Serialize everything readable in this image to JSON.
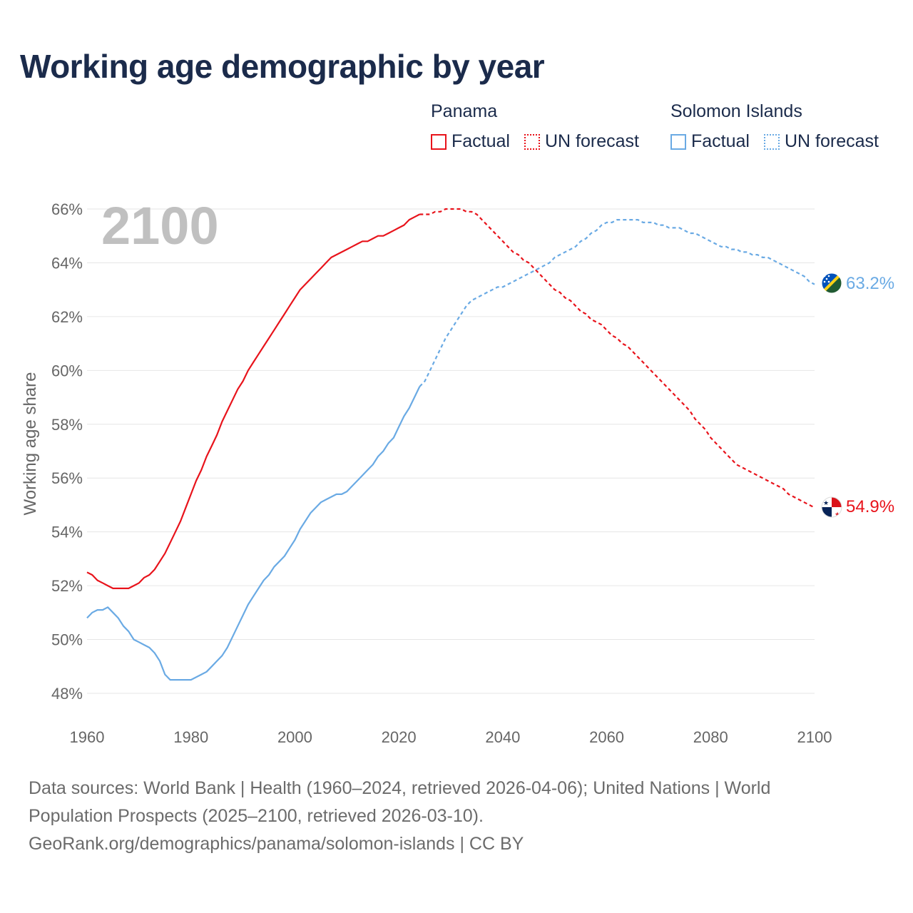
{
  "title": "Working age demographic by year",
  "legend": {
    "groups": [
      {
        "name": "Panama",
        "items": [
          {
            "label": "Factual",
            "style": "solid",
            "color": "#e8131b"
          },
          {
            "label": "UN forecast",
            "style": "dotted",
            "color": "#e8131b"
          }
        ]
      },
      {
        "name": "Solomon Islands",
        "items": [
          {
            "label": "Factual",
            "style": "solid",
            "color": "#6aaae4"
          },
          {
            "label": "UN forecast",
            "style": "dotted",
            "color": "#6aaae4"
          }
        ]
      }
    ]
  },
  "chart_data": {
    "type": "line",
    "title": "Working age demographic by year",
    "xlabel": "",
    "ylabel": "Working age share",
    "year_watermark": "2100",
    "xlim": [
      1960,
      2100
    ],
    "ylim": [
      47.5,
      66.5
    ],
    "x_ticks": [
      1960,
      1980,
      2000,
      2020,
      2040,
      2060,
      2080,
      2100
    ],
    "y_ticks": [
      48,
      50,
      52,
      54,
      56,
      58,
      60,
      62,
      64,
      66
    ],
    "y_tick_labels": [
      "48%",
      "50%",
      "52%",
      "54%",
      "56%",
      "58%",
      "60%",
      "62%",
      "64%",
      "66%"
    ],
    "grid": "horizontal",
    "series": [
      {
        "name": "Panama",
        "color": "#e8131b",
        "end_label": "54.9%",
        "factual": [
          [
            1960,
            52.5
          ],
          [
            1961,
            52.4
          ],
          [
            1962,
            52.2
          ],
          [
            1963,
            52.1
          ],
          [
            1964,
            52.0
          ],
          [
            1965,
            51.9
          ],
          [
            1966,
            51.9
          ],
          [
            1967,
            51.9
          ],
          [
            1968,
            51.9
          ],
          [
            1969,
            52.0
          ],
          [
            1970,
            52.1
          ],
          [
            1971,
            52.3
          ],
          [
            1972,
            52.4
          ],
          [
            1973,
            52.6
          ],
          [
            1974,
            52.9
          ],
          [
            1975,
            53.2
          ],
          [
            1976,
            53.6
          ],
          [
            1977,
            54.0
          ],
          [
            1978,
            54.4
          ],
          [
            1979,
            54.9
          ],
          [
            1980,
            55.4
          ],
          [
            1981,
            55.9
          ],
          [
            1982,
            56.3
          ],
          [
            1983,
            56.8
          ],
          [
            1984,
            57.2
          ],
          [
            1985,
            57.6
          ],
          [
            1986,
            58.1
          ],
          [
            1987,
            58.5
          ],
          [
            1988,
            58.9
          ],
          [
            1989,
            59.3
          ],
          [
            1990,
            59.6
          ],
          [
            1991,
            60.0
          ],
          [
            1992,
            60.3
          ],
          [
            1993,
            60.6
          ],
          [
            1994,
            60.9
          ],
          [
            1995,
            61.2
          ],
          [
            1996,
            61.5
          ],
          [
            1997,
            61.8
          ],
          [
            1998,
            62.1
          ],
          [
            1999,
            62.4
          ],
          [
            2000,
            62.7
          ],
          [
            2001,
            63.0
          ],
          [
            2002,
            63.2
          ],
          [
            2003,
            63.4
          ],
          [
            2004,
            63.6
          ],
          [
            2005,
            63.8
          ],
          [
            2006,
            64.0
          ],
          [
            2007,
            64.2
          ],
          [
            2008,
            64.3
          ],
          [
            2009,
            64.4
          ],
          [
            2010,
            64.5
          ],
          [
            2011,
            64.6
          ],
          [
            2012,
            64.7
          ],
          [
            2013,
            64.8
          ],
          [
            2014,
            64.8
          ],
          [
            2015,
            64.9
          ],
          [
            2016,
            65.0
          ],
          [
            2017,
            65.0
          ],
          [
            2018,
            65.1
          ],
          [
            2019,
            65.2
          ],
          [
            2020,
            65.3
          ],
          [
            2021,
            65.4
          ],
          [
            2022,
            65.6
          ],
          [
            2023,
            65.7
          ],
          [
            2024,
            65.8
          ]
        ],
        "forecast": [
          [
            2024,
            65.8
          ],
          [
            2025,
            65.8
          ],
          [
            2026,
            65.8
          ],
          [
            2027,
            65.9
          ],
          [
            2028,
            65.9
          ],
          [
            2029,
            66.0
          ],
          [
            2030,
            66.0
          ],
          [
            2031,
            66.0
          ],
          [
            2032,
            66.0
          ],
          [
            2033,
            65.9
          ],
          [
            2034,
            65.9
          ],
          [
            2035,
            65.8
          ],
          [
            2036,
            65.6
          ],
          [
            2037,
            65.4
          ],
          [
            2038,
            65.2
          ],
          [
            2039,
            65.0
          ],
          [
            2040,
            64.8
          ],
          [
            2041,
            64.6
          ],
          [
            2042,
            64.4
          ],
          [
            2043,
            64.3
          ],
          [
            2044,
            64.1
          ],
          [
            2045,
            64.0
          ],
          [
            2046,
            63.8
          ],
          [
            2047,
            63.6
          ],
          [
            2048,
            63.4
          ],
          [
            2049,
            63.2
          ],
          [
            2050,
            63.0
          ],
          [
            2051,
            62.9
          ],
          [
            2052,
            62.7
          ],
          [
            2053,
            62.6
          ],
          [
            2054,
            62.4
          ],
          [
            2055,
            62.2
          ],
          [
            2056,
            62.1
          ],
          [
            2057,
            61.9
          ],
          [
            2058,
            61.8
          ],
          [
            2059,
            61.7
          ],
          [
            2060,
            61.5
          ],
          [
            2061,
            61.3
          ],
          [
            2062,
            61.2
          ],
          [
            2063,
            61.0
          ],
          [
            2064,
            60.9
          ],
          [
            2065,
            60.7
          ],
          [
            2066,
            60.5
          ],
          [
            2067,
            60.3
          ],
          [
            2068,
            60.1
          ],
          [
            2069,
            59.9
          ],
          [
            2070,
            59.7
          ],
          [
            2071,
            59.5
          ],
          [
            2072,
            59.3
          ],
          [
            2073,
            59.1
          ],
          [
            2074,
            58.9
          ],
          [
            2075,
            58.7
          ],
          [
            2076,
            58.5
          ],
          [
            2077,
            58.2
          ],
          [
            2078,
            58.0
          ],
          [
            2079,
            57.8
          ],
          [
            2080,
            57.5
          ],
          [
            2081,
            57.3
          ],
          [
            2082,
            57.1
          ],
          [
            2083,
            56.9
          ],
          [
            2084,
            56.7
          ],
          [
            2085,
            56.5
          ],
          [
            2086,
            56.4
          ],
          [
            2087,
            56.3
          ],
          [
            2088,
            56.2
          ],
          [
            2089,
            56.1
          ],
          [
            2090,
            56.0
          ],
          [
            2091,
            55.9
          ],
          [
            2092,
            55.8
          ],
          [
            2093,
            55.7
          ],
          [
            2094,
            55.6
          ],
          [
            2095,
            55.4
          ],
          [
            2096,
            55.3
          ],
          [
            2097,
            55.2
          ],
          [
            2098,
            55.1
          ],
          [
            2099,
            55.0
          ],
          [
            2100,
            54.9
          ]
        ]
      },
      {
        "name": "Solomon Islands",
        "color": "#6aaae4",
        "end_label": "63.2%",
        "factual": [
          [
            1960,
            50.8
          ],
          [
            1961,
            51.0
          ],
          [
            1962,
            51.1
          ],
          [
            1963,
            51.1
          ],
          [
            1964,
            51.2
          ],
          [
            1965,
            51.0
          ],
          [
            1966,
            50.8
          ],
          [
            1967,
            50.5
          ],
          [
            1968,
            50.3
          ],
          [
            1969,
            50.0
          ],
          [
            1970,
            49.9
          ],
          [
            1971,
            49.8
          ],
          [
            1972,
            49.7
          ],
          [
            1973,
            49.5
          ],
          [
            1974,
            49.2
          ],
          [
            1975,
            48.7
          ],
          [
            1976,
            48.5
          ],
          [
            1977,
            48.5
          ],
          [
            1978,
            48.5
          ],
          [
            1979,
            48.5
          ],
          [
            1980,
            48.5
          ],
          [
            1981,
            48.6
          ],
          [
            1982,
            48.7
          ],
          [
            1983,
            48.8
          ],
          [
            1984,
            49.0
          ],
          [
            1985,
            49.2
          ],
          [
            1986,
            49.4
          ],
          [
            1987,
            49.7
          ],
          [
            1988,
            50.1
          ],
          [
            1989,
            50.5
          ],
          [
            1990,
            50.9
          ],
          [
            1991,
            51.3
          ],
          [
            1992,
            51.6
          ],
          [
            1993,
            51.9
          ],
          [
            1994,
            52.2
          ],
          [
            1995,
            52.4
          ],
          [
            1996,
            52.7
          ],
          [
            1997,
            52.9
          ],
          [
            1998,
            53.1
          ],
          [
            1999,
            53.4
          ],
          [
            2000,
            53.7
          ],
          [
            2001,
            54.1
          ],
          [
            2002,
            54.4
          ],
          [
            2003,
            54.7
          ],
          [
            2004,
            54.9
          ],
          [
            2005,
            55.1
          ],
          [
            2006,
            55.2
          ],
          [
            2007,
            55.3
          ],
          [
            2008,
            55.4
          ],
          [
            2009,
            55.4
          ],
          [
            2010,
            55.5
          ],
          [
            2011,
            55.7
          ],
          [
            2012,
            55.9
          ],
          [
            2013,
            56.1
          ],
          [
            2014,
            56.3
          ],
          [
            2015,
            56.5
          ],
          [
            2016,
            56.8
          ],
          [
            2017,
            57.0
          ],
          [
            2018,
            57.3
          ],
          [
            2019,
            57.5
          ],
          [
            2020,
            57.9
          ],
          [
            2021,
            58.3
          ],
          [
            2022,
            58.6
          ],
          [
            2023,
            59.0
          ],
          [
            2024,
            59.4
          ]
        ],
        "forecast": [
          [
            2024,
            59.4
          ],
          [
            2025,
            59.6
          ],
          [
            2026,
            60.0
          ],
          [
            2027,
            60.4
          ],
          [
            2028,
            60.8
          ],
          [
            2029,
            61.2
          ],
          [
            2030,
            61.5
          ],
          [
            2031,
            61.8
          ],
          [
            2032,
            62.1
          ],
          [
            2033,
            62.4
          ],
          [
            2034,
            62.6
          ],
          [
            2035,
            62.7
          ],
          [
            2036,
            62.8
          ],
          [
            2037,
            62.9
          ],
          [
            2038,
            63.0
          ],
          [
            2039,
            63.1
          ],
          [
            2040,
            63.1
          ],
          [
            2041,
            63.2
          ],
          [
            2042,
            63.3
          ],
          [
            2043,
            63.4
          ],
          [
            2044,
            63.5
          ],
          [
            2045,
            63.6
          ],
          [
            2046,
            63.7
          ],
          [
            2047,
            63.8
          ],
          [
            2048,
            63.9
          ],
          [
            2049,
            64.0
          ],
          [
            2050,
            64.2
          ],
          [
            2051,
            64.3
          ],
          [
            2052,
            64.4
          ],
          [
            2053,
            64.5
          ],
          [
            2054,
            64.6
          ],
          [
            2055,
            64.8
          ],
          [
            2056,
            64.9
          ],
          [
            2057,
            65.1
          ],
          [
            2058,
            65.2
          ],
          [
            2059,
            65.4
          ],
          [
            2060,
            65.5
          ],
          [
            2061,
            65.5
          ],
          [
            2062,
            65.6
          ],
          [
            2063,
            65.6
          ],
          [
            2064,
            65.6
          ],
          [
            2065,
            65.6
          ],
          [
            2066,
            65.6
          ],
          [
            2067,
            65.5
          ],
          [
            2068,
            65.5
          ],
          [
            2069,
            65.5
          ],
          [
            2070,
            65.4
          ],
          [
            2071,
            65.4
          ],
          [
            2072,
            65.3
          ],
          [
            2073,
            65.3
          ],
          [
            2074,
            65.3
          ],
          [
            2075,
            65.2
          ],
          [
            2076,
            65.1
          ],
          [
            2077,
            65.1
          ],
          [
            2078,
            65.0
          ],
          [
            2079,
            64.9
          ],
          [
            2080,
            64.8
          ],
          [
            2081,
            64.7
          ],
          [
            2082,
            64.6
          ],
          [
            2083,
            64.6
          ],
          [
            2084,
            64.5
          ],
          [
            2085,
            64.5
          ],
          [
            2086,
            64.4
          ],
          [
            2087,
            64.4
          ],
          [
            2088,
            64.3
          ],
          [
            2089,
            64.3
          ],
          [
            2090,
            64.2
          ],
          [
            2091,
            64.2
          ],
          [
            2092,
            64.1
          ],
          [
            2093,
            64.0
          ],
          [
            2094,
            63.9
          ],
          [
            2095,
            63.8
          ],
          [
            2096,
            63.7
          ],
          [
            2097,
            63.6
          ],
          [
            2098,
            63.5
          ],
          [
            2099,
            63.3
          ],
          [
            2100,
            63.2
          ]
        ]
      }
    ]
  },
  "footer": {
    "line1": "Data sources: World Bank | Health (1960–2024, retrieved 2026-04-06); United Nations | World",
    "line2": "Population Prospects (2025–2100, retrieved 2026-03-10).",
    "line3": "GeoRank.org/demographics/panama/solomon-islands | CC BY"
  }
}
